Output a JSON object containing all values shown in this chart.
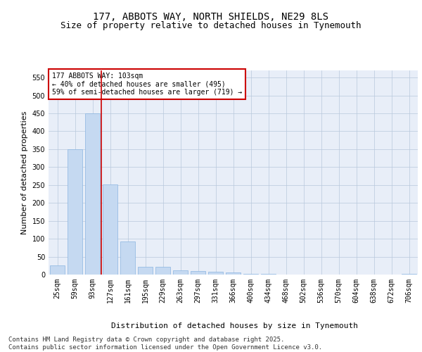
{
  "title_line1": "177, ABBOTS WAY, NORTH SHIELDS, NE29 8LS",
  "title_line2": "Size of property relative to detached houses in Tynemouth",
  "xlabel": "Distribution of detached houses by size in Tynemouth",
  "ylabel": "Number of detached properties",
  "categories": [
    "25sqm",
    "59sqm",
    "93sqm",
    "127sqm",
    "161sqm",
    "195sqm",
    "229sqm",
    "263sqm",
    "297sqm",
    "331sqm",
    "366sqm",
    "400sqm",
    "434sqm",
    "468sqm",
    "502sqm",
    "536sqm",
    "570sqm",
    "604sqm",
    "638sqm",
    "672sqm",
    "706sqm"
  ],
  "values": [
    25,
    350,
    450,
    252,
    92,
    22,
    22,
    12,
    10,
    8,
    5,
    2,
    1,
    0,
    0,
    0,
    0,
    0,
    0,
    0,
    1
  ],
  "bar_color": "#c5d9f1",
  "bar_edgecolor": "#8ab4e0",
  "vline_x": 2.5,
  "vline_color": "#cc0000",
  "annotation_text": "177 ABBOTS WAY: 103sqm\n← 40% of detached houses are smaller (495)\n59% of semi-detached houses are larger (719) →",
  "annotation_bbox_color": "#ffffff",
  "annotation_bbox_edgecolor": "#cc0000",
  "ylim": [
    0,
    570
  ],
  "yticks": [
    0,
    50,
    100,
    150,
    200,
    250,
    300,
    350,
    400,
    450,
    500,
    550
  ],
  "background_color": "#e8eef8",
  "footer_text": "Contains HM Land Registry data © Crown copyright and database right 2025.\nContains public sector information licensed under the Open Government Licence v3.0.",
  "title_fontsize": 10,
  "subtitle_fontsize": 9,
  "label_fontsize": 8,
  "tick_fontsize": 7,
  "annot_fontsize": 7,
  "footer_fontsize": 6.5
}
